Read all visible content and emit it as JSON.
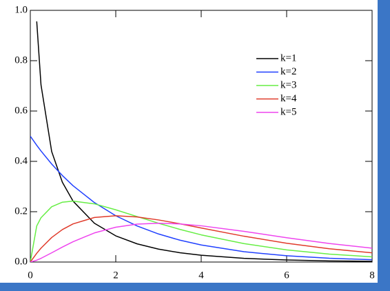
{
  "chart_data": {
    "type": "line",
    "x": [
      0,
      0.15,
      0.25,
      0.5,
      0.75,
      1,
      1.5,
      2,
      2.5,
      3,
      3.5,
      4,
      5,
      6,
      7,
      8
    ],
    "series": [
      {
        "name": "k=1",
        "color": "#000000",
        "values": [
          null,
          0.956,
          0.704,
          0.439,
          0.317,
          0.242,
          0.154,
          0.104,
          0.0723,
          0.0514,
          0.0371,
          0.027,
          0.0146,
          0.0081,
          0.0046,
          0.0026
        ]
      },
      {
        "name": "k=2",
        "color": "#1f3fff",
        "values": [
          0.5,
          0.4638,
          0.4412,
          0.3894,
          0.3437,
          0.3033,
          0.2362,
          0.1839,
          0.1433,
          0.1116,
          0.0869,
          0.0677,
          0.041,
          0.0249,
          0.0151,
          0.0092
        ]
      },
      {
        "name": "k=3",
        "color": "#66ee44",
        "values": [
          0,
          0.1434,
          0.176,
          0.2197,
          0.2377,
          0.242,
          0.2313,
          0.2076,
          0.1807,
          0.1542,
          0.1298,
          0.108,
          0.0732,
          0.0483,
          0.0315,
          0.0207
        ]
      },
      {
        "name": "k=4",
        "color": "#e03a2a",
        "values": [
          0,
          0.0348,
          0.0552,
          0.0974,
          0.1289,
          0.1516,
          0.1771,
          0.1839,
          0.1791,
          0.1673,
          0.1521,
          0.1353,
          0.1026,
          0.0747,
          0.0528,
          0.0366
        ]
      },
      {
        "name": "k=5",
        "color": "#ee44ee",
        "values": [
          0,
          0.0072,
          0.0147,
          0.0366,
          0.0594,
          0.0807,
          0.1157,
          0.1384,
          0.1506,
          0.1542,
          0.1514,
          0.144,
          0.122,
          0.0966,
          0.0735,
          0.0552
        ]
      }
    ],
    "xlim": [
      0,
      8
    ],
    "xticks": [
      0,
      2,
      4,
      6,
      8
    ],
    "ylim": [
      0,
      1
    ],
    "yticks": [
      {
        "value": 0,
        "label": "0.0"
      },
      {
        "value": 0.2,
        "label": "0.2"
      },
      {
        "value": 0.4,
        "label": "0.4"
      },
      {
        "value": 0.6,
        "label": "0.6"
      },
      {
        "value": 0.8,
        "label": "0.8"
      },
      {
        "value": 1,
        "label": "1.0"
      }
    ],
    "legend": "upper right"
  }
}
